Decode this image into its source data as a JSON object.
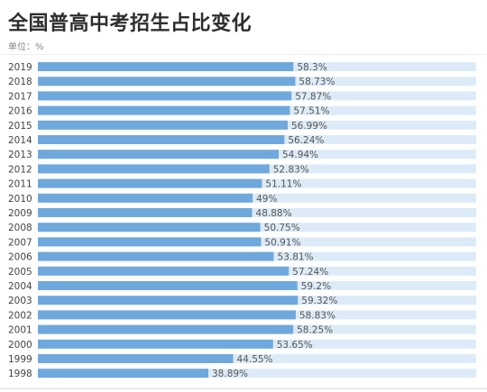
{
  "title": "全国普高中考招生占比变化",
  "unit_label": "单位：%",
  "colors": {
    "bar": "#6fa8dc",
    "track": "#dcebf7",
    "bg": "#ffffff"
  },
  "chart_data": {
    "type": "bar",
    "orientation": "horizontal",
    "title": "全国普高中考招生占比变化",
    "unit": "%",
    "xlim": [
      0,
      100
    ],
    "grid": false,
    "categories": [
      "2019",
      "2018",
      "2017",
      "2016",
      "2015",
      "2014",
      "2013",
      "2012",
      "2011",
      "2010",
      "2009",
      "2008",
      "2007",
      "2006",
      "2005",
      "2004",
      "2003",
      "2002",
      "2001",
      "2000",
      "1999",
      "1998"
    ],
    "values": [
      58.3,
      58.73,
      57.87,
      57.51,
      56.99,
      56.24,
      54.94,
      52.83,
      51.11,
      49,
      48.88,
      50.75,
      50.91,
      53.81,
      57.24,
      59.2,
      59.32,
      58.83,
      58.25,
      53.65,
      44.55,
      38.89
    ],
    "value_labels": [
      "58.3%",
      "58.73%",
      "57.87%",
      "57.51%",
      "56.99%",
      "56.24%",
      "54.94%",
      "52.83%",
      "51.11%",
      "49%",
      "48.88%",
      "50.75%",
      "50.91%",
      "53.81%",
      "57.24%",
      "59.2%",
      "59.32%",
      "58.83%",
      "58.25%",
      "53.65%",
      "44.55%",
      "38.89%"
    ]
  }
}
